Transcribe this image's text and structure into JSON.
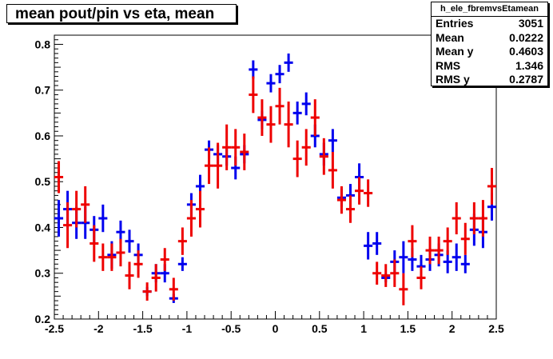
{
  "title": "mean pout/pin vs eta, mean",
  "stats": {
    "name": "h_ele_fbremvsEtamean",
    "rows": [
      {
        "label": "Entries",
        "value": "3051"
      },
      {
        "label": "Mean",
        "value": "0.0222"
      },
      {
        "label": "Mean y",
        "value": "0.4603"
      },
      {
        "label": "RMS",
        "value": "1.346"
      },
      {
        "label": "RMS y",
        "value": "0.2787"
      }
    ]
  },
  "chart_data": {
    "type": "scatter",
    "xlabel": "",
    "ylabel": "",
    "xlim": [
      -2.5,
      2.5
    ],
    "ylim": [
      0.2,
      0.82
    ],
    "x_ticks": [
      "-2.5",
      "-2",
      "-1.5",
      "-1",
      "-0.5",
      "0",
      "0.5",
      "1",
      "1.5",
      "2",
      "2.5"
    ],
    "y_ticks": [
      "0.2",
      "0.3",
      "0.4",
      "0.5",
      "0.6",
      "0.7",
      "0.8"
    ],
    "bin_half_width": 0.05,
    "series": [
      {
        "color": "#0000ee",
        "points": [
          {
            "x": -2.45,
            "y": 0.42,
            "err": 0.04
          },
          {
            "x": -2.35,
            "y": 0.44,
            "err": 0.04
          },
          {
            "x": -2.25,
            "y": 0.41,
            "err": 0.035
          },
          {
            "x": -2.15,
            "y": 0.41,
            "err": 0.035
          },
          {
            "x": -2.05,
            "y": 0.395,
            "err": 0.03
          },
          {
            "x": -1.95,
            "y": 0.42,
            "err": 0.03
          },
          {
            "x": -1.85,
            "y": 0.34,
            "err": 0.03
          },
          {
            "x": -1.75,
            "y": 0.39,
            "err": 0.025
          },
          {
            "x": -1.65,
            "y": 0.37,
            "err": 0.025
          },
          {
            "x": -1.55,
            "y": 0.34,
            "err": 0.025
          },
          {
            "x": -1.45,
            "y": 0.26,
            "err": 0.01
          },
          {
            "x": -1.35,
            "y": 0.3,
            "err": 0.02
          },
          {
            "x": -1.25,
            "y": 0.3,
            "err": 0.02
          },
          {
            "x": -1.15,
            "y": 0.245,
            "err": 0.01
          },
          {
            "x": -1.05,
            "y": 0.32,
            "err": 0.015
          },
          {
            "x": -0.95,
            "y": 0.45,
            "err": 0.025
          },
          {
            "x": -0.85,
            "y": 0.49,
            "err": 0.025
          },
          {
            "x": -0.75,
            "y": 0.57,
            "err": 0.02
          },
          {
            "x": -0.65,
            "y": 0.56,
            "err": 0.02
          },
          {
            "x": -0.55,
            "y": 0.555,
            "err": 0.02
          },
          {
            "x": -0.45,
            "y": 0.53,
            "err": 0.025
          },
          {
            "x": -0.35,
            "y": 0.56,
            "err": 0.02
          },
          {
            "x": -0.25,
            "y": 0.745,
            "err": 0.02
          },
          {
            "x": -0.15,
            "y": 0.635,
            "err": 0.02
          },
          {
            "x": -0.05,
            "y": 0.715,
            "err": 0.02
          },
          {
            "x": 0.05,
            "y": 0.735,
            "err": 0.02
          },
          {
            "x": 0.15,
            "y": 0.76,
            "err": 0.02
          },
          {
            "x": 0.25,
            "y": 0.65,
            "err": 0.025
          },
          {
            "x": 0.35,
            "y": 0.67,
            "err": 0.025
          },
          {
            "x": 0.45,
            "y": 0.6,
            "err": 0.025
          },
          {
            "x": 0.55,
            "y": 0.56,
            "err": 0.025
          },
          {
            "x": 0.65,
            "y": 0.59,
            "err": 0.025
          },
          {
            "x": 0.75,
            "y": 0.465,
            "err": 0.02
          },
          {
            "x": 0.85,
            "y": 0.47,
            "err": 0.025
          },
          {
            "x": 0.95,
            "y": 0.51,
            "err": 0.03
          },
          {
            "x": 1.05,
            "y": 0.36,
            "err": 0.03
          },
          {
            "x": 1.15,
            "y": 0.365,
            "err": 0.025
          },
          {
            "x": 1.25,
            "y": 0.29,
            "err": 0.01
          },
          {
            "x": 1.35,
            "y": 0.325,
            "err": 0.025
          },
          {
            "x": 1.45,
            "y": 0.335,
            "err": 0.035
          },
          {
            "x": 1.55,
            "y": 0.33,
            "err": 0.025
          },
          {
            "x": 1.65,
            "y": 0.315,
            "err": 0.025
          },
          {
            "x": 1.75,
            "y": 0.33,
            "err": 0.025
          },
          {
            "x": 1.85,
            "y": 0.34,
            "err": 0.025
          },
          {
            "x": 1.95,
            "y": 0.325,
            "err": 0.025
          },
          {
            "x": 2.05,
            "y": 0.335,
            "err": 0.03
          },
          {
            "x": 2.15,
            "y": 0.32,
            "err": 0.02
          },
          {
            "x": 2.25,
            "y": 0.395,
            "err": 0.035
          },
          {
            "x": 2.35,
            "y": 0.39,
            "err": 0.035
          },
          {
            "x": 2.45,
            "y": 0.445,
            "err": 0.03
          }
        ]
      },
      {
        "color": "#ee0000",
        "points": [
          {
            "x": -2.45,
            "y": 0.51,
            "err": 0.035
          },
          {
            "x": -2.35,
            "y": 0.405,
            "err": 0.05
          },
          {
            "x": -2.25,
            "y": 0.44,
            "err": 0.04
          },
          {
            "x": -2.15,
            "y": 0.45,
            "err": 0.04
          },
          {
            "x": -2.05,
            "y": 0.365,
            "err": 0.04
          },
          {
            "x": -1.95,
            "y": 0.335,
            "err": 0.03
          },
          {
            "x": -1.85,
            "y": 0.335,
            "err": 0.03
          },
          {
            "x": -1.75,
            "y": 0.345,
            "err": 0.03
          },
          {
            "x": -1.65,
            "y": 0.295,
            "err": 0.03
          },
          {
            "x": -1.55,
            "y": 0.32,
            "err": 0.03
          },
          {
            "x": -1.45,
            "y": 0.26,
            "err": 0.02
          },
          {
            "x": -1.35,
            "y": 0.29,
            "err": 0.03
          },
          {
            "x": -1.25,
            "y": 0.33,
            "err": 0.025
          },
          {
            "x": -1.15,
            "y": 0.265,
            "err": 0.025
          },
          {
            "x": -1.05,
            "y": 0.37,
            "err": 0.03
          },
          {
            "x": -0.95,
            "y": 0.42,
            "err": 0.04
          },
          {
            "x": -0.85,
            "y": 0.44,
            "err": 0.04
          },
          {
            "x": -0.75,
            "y": 0.535,
            "err": 0.04
          },
          {
            "x": -0.65,
            "y": 0.535,
            "err": 0.05
          },
          {
            "x": -0.55,
            "y": 0.575,
            "err": 0.05
          },
          {
            "x": -0.45,
            "y": 0.575,
            "err": 0.04
          },
          {
            "x": -0.35,
            "y": 0.565,
            "err": 0.04
          },
          {
            "x": -0.25,
            "y": 0.69,
            "err": 0.04
          },
          {
            "x": -0.15,
            "y": 0.64,
            "err": 0.04
          },
          {
            "x": -0.05,
            "y": 0.625,
            "err": 0.04
          },
          {
            "x": 0.05,
            "y": 0.665,
            "err": 0.04
          },
          {
            "x": 0.15,
            "y": 0.625,
            "err": 0.05
          },
          {
            "x": 0.25,
            "y": 0.55,
            "err": 0.04
          },
          {
            "x": 0.35,
            "y": 0.575,
            "err": 0.04
          },
          {
            "x": 0.45,
            "y": 0.64,
            "err": 0.04
          },
          {
            "x": 0.55,
            "y": 0.555,
            "err": 0.04
          },
          {
            "x": 0.65,
            "y": 0.525,
            "err": 0.04
          },
          {
            "x": 0.75,
            "y": 0.46,
            "err": 0.03
          },
          {
            "x": 0.85,
            "y": 0.44,
            "err": 0.03
          },
          {
            "x": 0.95,
            "y": 0.48,
            "err": 0.03
          },
          {
            "x": 1.05,
            "y": 0.475,
            "err": 0.03
          },
          {
            "x": 1.15,
            "y": 0.3,
            "err": 0.025
          },
          {
            "x": 1.25,
            "y": 0.295,
            "err": 0.025
          },
          {
            "x": 1.35,
            "y": 0.3,
            "err": 0.03
          },
          {
            "x": 1.45,
            "y": 0.265,
            "err": 0.035
          },
          {
            "x": 1.55,
            "y": 0.37,
            "err": 0.035
          },
          {
            "x": 1.65,
            "y": 0.29,
            "err": 0.025
          },
          {
            "x": 1.75,
            "y": 0.35,
            "err": 0.03
          },
          {
            "x": 1.85,
            "y": 0.35,
            "err": 0.03
          },
          {
            "x": 1.95,
            "y": 0.37,
            "err": 0.03
          },
          {
            "x": 2.05,
            "y": 0.42,
            "err": 0.035
          },
          {
            "x": 2.15,
            "y": 0.375,
            "err": 0.035
          },
          {
            "x": 2.25,
            "y": 0.42,
            "err": 0.035
          },
          {
            "x": 2.35,
            "y": 0.42,
            "err": 0.04
          },
          {
            "x": 2.45,
            "y": 0.49,
            "err": 0.04
          }
        ]
      }
    ]
  }
}
